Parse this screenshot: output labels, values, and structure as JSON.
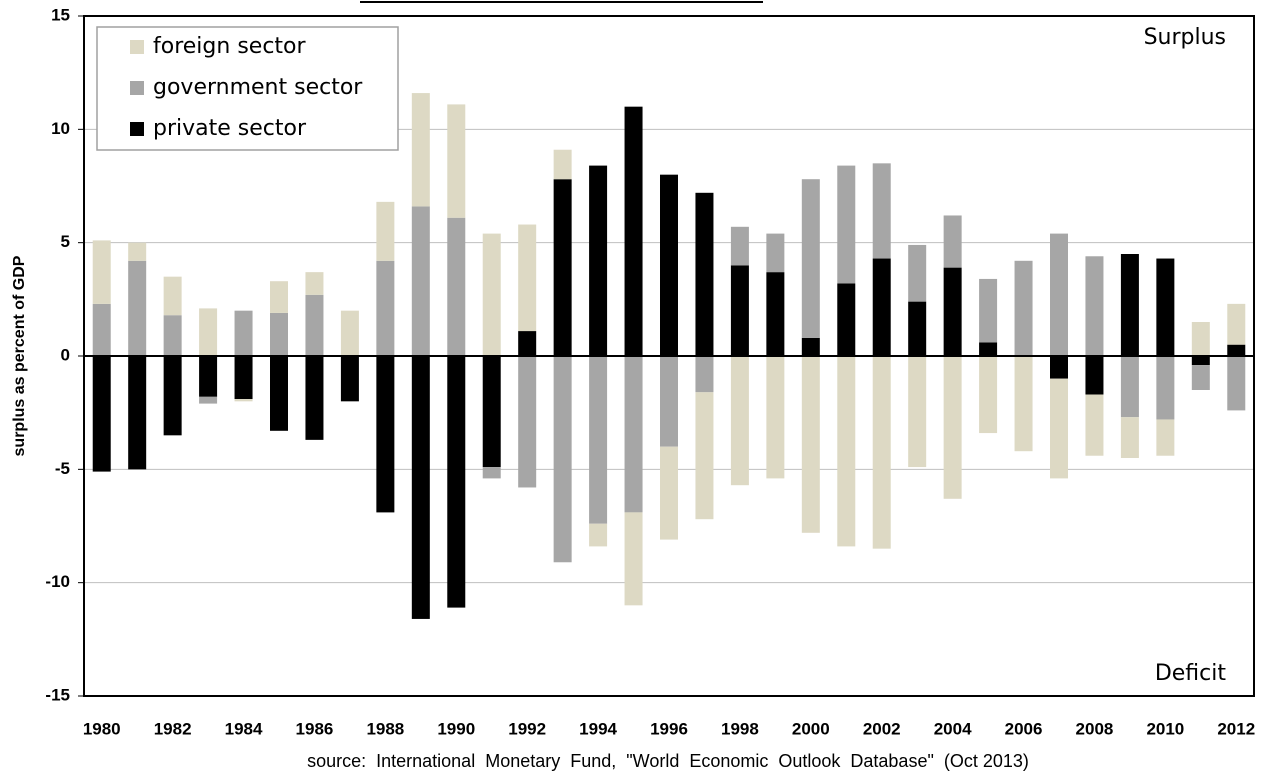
{
  "chart_data": {
    "type": "bar",
    "stacked": true,
    "y_label": "surplus as percent of GDP",
    "annotations": [
      "Surplus",
      "Deficit"
    ],
    "source": "source:  International  Monetary  Fund,  \"World  Economic  Outlook  Database\"  (Oct 2013)",
    "categories": [
      "1980",
      null,
      "1982",
      null,
      "1984",
      null,
      "1986",
      null,
      "1988",
      null,
      "1990",
      null,
      "1992",
      null,
      "1994",
      null,
      "1996",
      null,
      "1998",
      null,
      "2000",
      null,
      "2002",
      null,
      "2004",
      null,
      "2006",
      null,
      "2008",
      null,
      "2010",
      null,
      "2012"
    ],
    "series": [
      {
        "name": "foreign sector",
        "color": "#ddd9c4",
        "values": [
          2.8,
          0.8,
          1.7,
          2.1,
          -0.1,
          1.4,
          1.0,
          2.0,
          2.6,
          5.0,
          5.0,
          5.4,
          4.7,
          1.3,
          -1.0,
          -4.1,
          -4.1,
          -5.6,
          -5.7,
          -5.4,
          -7.8,
          -8.4,
          -8.5,
          -4.9,
          -6.3,
          -3.4,
          -4.2,
          -4.4,
          -2.7,
          -1.8,
          -1.6,
          1.5,
          1.8
        ]
      },
      {
        "name": "government sector",
        "color": "#a6a6a6",
        "values": [
          2.3,
          4.2,
          1.8,
          -0.3,
          2.0,
          1.9,
          2.7,
          0,
          4.2,
          6.6,
          6.1,
          -0.5,
          -5.8,
          -9.1,
          -7.4,
          -6.9,
          -4.0,
          -1.6,
          1.7,
          1.7,
          7.0,
          5.2,
          4.2,
          2.5,
          2.3,
          2.8,
          4.2,
          5.4,
          4.4,
          -2.7,
          -2.8,
          -1.1,
          -2.4
        ]
      },
      {
        "name": "private sector",
        "color": "#000000",
        "values": [
          -5.1,
          -5.0,
          -3.5,
          -1.8,
          -1.9,
          -3.3,
          -3.7,
          -2.0,
          -6.9,
          -11.6,
          -11.1,
          -4.9,
          1.1,
          7.8,
          8.4,
          11.0,
          8.0,
          7.2,
          4.0,
          3.7,
          0.8,
          3.2,
          4.3,
          2.4,
          3.9,
          0.6,
          0,
          -1.0,
          -1.7,
          4.5,
          4.3,
          -0.4,
          0.5
        ]
      }
    ],
    "ylim": [
      -15,
      15
    ],
    "yticks": [
      -15,
      -10,
      -5,
      0,
      5,
      10,
      15
    ],
    "grid": true,
    "legend": "top-left"
  }
}
